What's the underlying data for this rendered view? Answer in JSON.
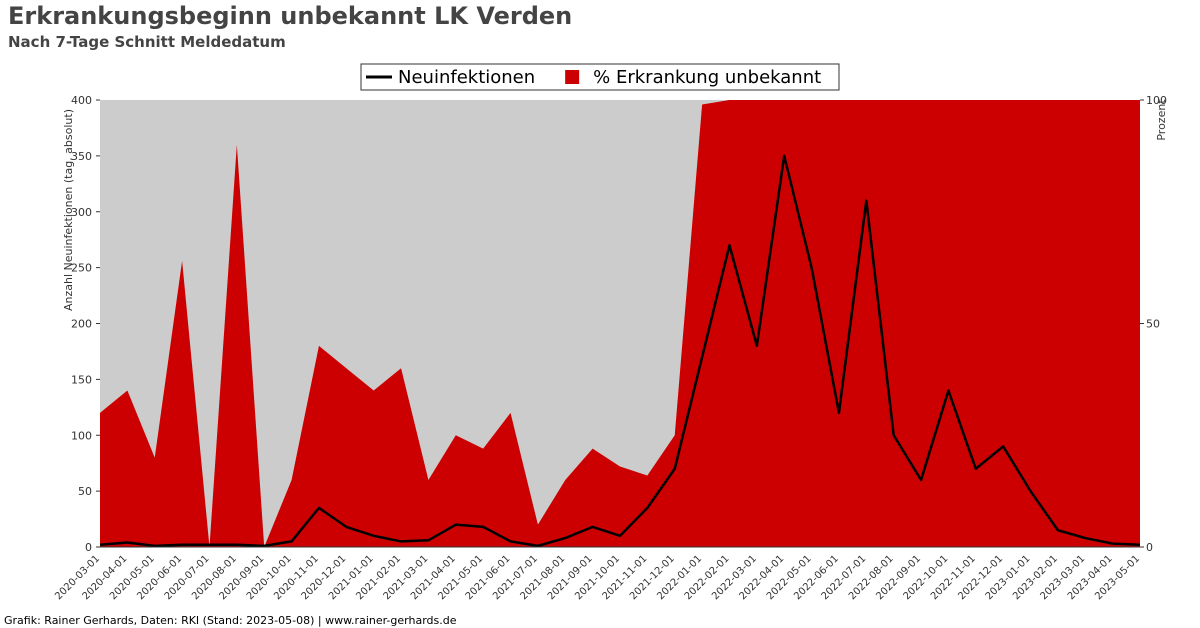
{
  "chart_data": {
    "type": "combo",
    "title": "Erkrankungsbeginn unbekannt LK Verden",
    "subtitle": "Nach 7-Tage Schnitt Meldedatum",
    "ylabel": "Anzahl Neuinfektionen (tag, absolut)",
    "y2label": "Prozent",
    "source": "Grafik: Rainer Gerhards, Daten: RKI (Stand: 2023-05-08) | www.rainer-gerhards.de",
    "categories": [
      "2020-03-01",
      "2020-04-01",
      "2020-05-01",
      "2020-06-01",
      "2020-07-01",
      "2020-08-01",
      "2020-09-01",
      "2020-10-01",
      "2020-11-01",
      "2020-12-01",
      "2021-01-01",
      "2021-02-01",
      "2021-03-01",
      "2021-04-01",
      "2021-05-01",
      "2021-06-01",
      "2021-07-01",
      "2021-08-01",
      "2021-09-01",
      "2021-10-01",
      "2021-11-01",
      "2021-12-01",
      "2022-01-01",
      "2022-02-01",
      "2022-03-01",
      "2022-04-01",
      "2022-05-01",
      "2022-06-01",
      "2022-07-01",
      "2022-08-01",
      "2022-09-01",
      "2022-10-01",
      "2022-11-01",
      "2022-12-01",
      "2023-01-01",
      "2023-02-01",
      "2023-03-01",
      "2023-04-01",
      "2023-05-01"
    ],
    "series": [
      {
        "name": "% Erkrankung unbekannt",
        "type": "area",
        "axis": "y2",
        "color": "#cc0000",
        "values": [
          30,
          35,
          20,
          64,
          0,
          90,
          0,
          15,
          45,
          40,
          35,
          40,
          15,
          25,
          22,
          30,
          5,
          15,
          22,
          18,
          16,
          25,
          99,
          100,
          100,
          100,
          100,
          100,
          100,
          100,
          100,
          100,
          100,
          100,
          100,
          100,
          100,
          100,
          100
        ]
      },
      {
        "name": "Neuinfektionen",
        "type": "line",
        "color": "#000000",
        "values": [
          2,
          4,
          1,
          2,
          2,
          2,
          1,
          5,
          35,
          18,
          10,
          5,
          6,
          20,
          18,
          5,
          1,
          8,
          18,
          10,
          35,
          70,
          170,
          270,
          180,
          350,
          250,
          120,
          310,
          100,
          60,
          140,
          70,
          90,
          50,
          15,
          8,
          3,
          2
        ]
      }
    ],
    "ylim": [
      0,
      400
    ],
    "yticks": [
      0,
      50,
      100,
      150,
      200,
      250,
      300,
      350,
      400
    ],
    "y2lim": [
      0,
      100
    ],
    "y2ticks": [
      0,
      50,
      100
    ],
    "background": "#cccccc"
  }
}
